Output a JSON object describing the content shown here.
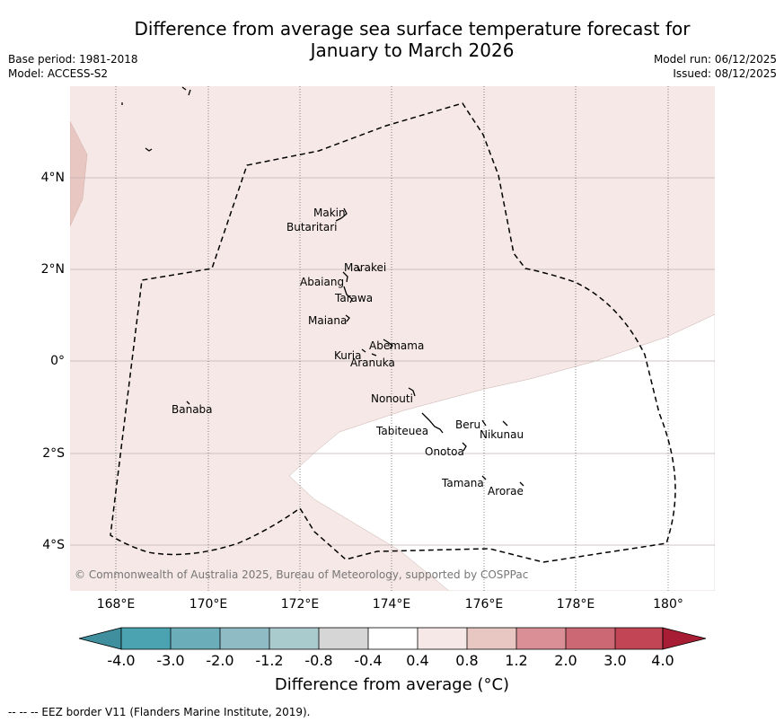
{
  "title_line1": "Difference from average sea surface temperature forecast for",
  "title_line2": "January to March 2026",
  "base_period": "Base period: 1981-2018",
  "model": "Model: ACCESS-S2",
  "model_run": "Model run: 06/12/2025",
  "issued": "Issued: 08/12/2025",
  "lat_ticks": [
    "4°N",
    "2°N",
    "0°",
    "2°S",
    "4°S"
  ],
  "lon_ticks": [
    "168°E",
    "170°E",
    "172°E",
    "174°E",
    "176°E",
    "178°E",
    "180°"
  ],
  "islands": [
    "Makin",
    "Butaritari",
    "Marakei",
    "Abaiang",
    "Tarawa",
    "Maiana",
    "Abemama",
    "Kuria",
    "Aranuka",
    "Nonouti",
    "Banaba",
    "Beru",
    "Nikunau",
    "Tabiteuea",
    "Onotoa",
    "Tamana",
    "Arorae"
  ],
  "copyright": "© Commonwealth of Australia 2025, Bureau of Meteorology, supported by COSPPac",
  "colorbar": {
    "boundaries": [
      "-4.0",
      "-3.0",
      "-2.0",
      "-1.2",
      "-0.8",
      "-0.4",
      "0.4",
      "0.8",
      "1.2",
      "2.0",
      "3.0",
      "4.0"
    ],
    "colors": [
      "#3f8f9f",
      "#4ba3b2",
      "#6cadba",
      "#8fbbc4",
      "#aacbcd",
      "#d6d6d6",
      "#ffffff",
      "#f5e8e6",
      "#e8c7c2",
      "#d98f95",
      "#cc6873",
      "#c24555",
      "#a71d33"
    ],
    "title": "Difference from average (°C)"
  },
  "map_colors": {
    "background_shade": "#f5e8e6",
    "warm_shade": "#e8c7c2",
    "cool_region": "#ffffff"
  },
  "footer": "--  --  -- EEZ border V11 (Flanders Marine Institute, 2019)."
}
